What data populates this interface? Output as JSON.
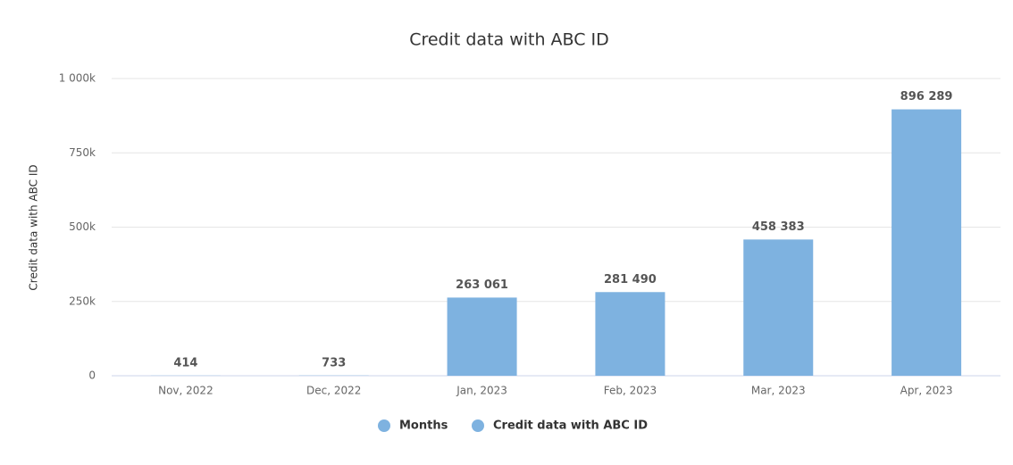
{
  "chart_data": {
    "type": "bar",
    "title": "Credit data with ABC ID",
    "y_label": "Credit data with ABC ID",
    "categories": [
      "Nov, 2022",
      "Dec, 2022",
      "Jan, 2023",
      "Feb, 2023",
      "Mar, 2023",
      "Apr, 2023"
    ],
    "values": [
      414,
      733,
      263061,
      281490,
      458383,
      896289
    ],
    "value_labels": [
      "414",
      "733",
      "263 061",
      "281 490",
      "458 383",
      "896 289"
    ],
    "color": "#7eb2e0",
    "ylim": [
      0,
      1000000
    ],
    "yticks": [
      0,
      {
        "value": 250000,
        "label": "250k"
      },
      {
        "value": 500000,
        "label": "500k"
      },
      {
        "value": 750000,
        "label": "750k"
      },
      {
        "value": 1000000,
        "label": "1 000k"
      }
    ],
    "grid": true,
    "legend": [
      {
        "name": "Months",
        "color": "#7eb2e0"
      },
      {
        "name": "Credit data with ABC ID",
        "color": "#7eb2e0"
      }
    ],
    "legend_position": "bottom"
  }
}
